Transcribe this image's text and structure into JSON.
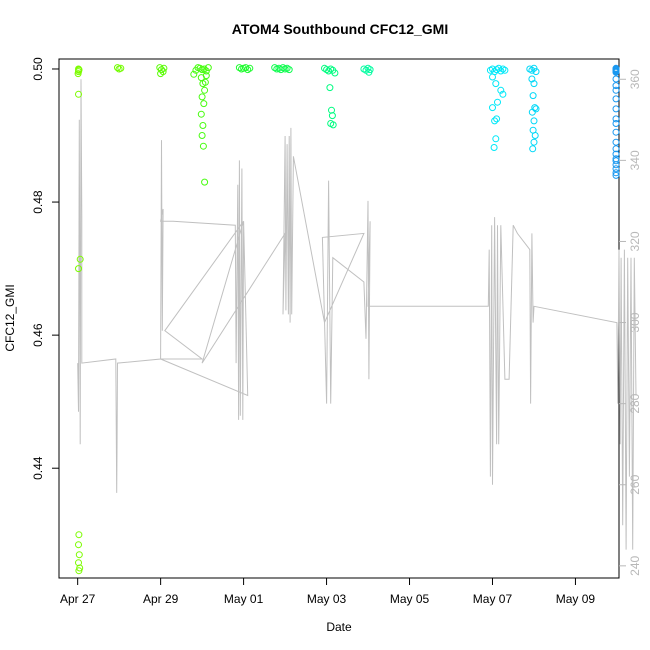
{
  "chart_data": {
    "type": "scatter",
    "title": "ATOM4 Southbound CFC12_GMI",
    "xlabel": "Date",
    "ylabel": "CFC12_GMI",
    "x_ticks": [
      {
        "x": 0,
        "label": "Apr 27"
      },
      {
        "x": 2,
        "label": "Apr 29"
      },
      {
        "x": 4,
        "label": "May 01"
      },
      {
        "x": 6,
        "label": "May 03"
      },
      {
        "x": 8,
        "label": "May 05"
      },
      {
        "x": 10,
        "label": "May 07"
      },
      {
        "x": 12,
        "label": "May 09"
      }
    ],
    "xlim": [
      -0.45,
      13.05
    ],
    "ylim": [
      0.4235,
      0.5015
    ],
    "y_ticks": [
      0.44,
      0.46,
      0.48,
      0.5
    ],
    "y2_label": "",
    "y2lim": [
      237,
      365
    ],
    "y2_ticks": [
      240,
      260,
      280,
      300,
      320,
      340,
      360
    ],
    "grid": false,
    "series": [
      {
        "kind": "scatter",
        "color_note": "points colored by time, green to blue",
        "points": [
          {
            "x": 0.02,
            "y": 0.5,
            "c": "#7CFC00"
          },
          {
            "x": 0.03,
            "y": 0.4999,
            "c": "#7CFC00"
          },
          {
            "x": 0.02,
            "y": 0.4996,
            "c": "#7CFC00"
          },
          {
            "x": 0.01,
            "y": 0.4993,
            "c": "#7CFC00"
          },
          {
            "x": 0.03,
            "y": 0.4998,
            "c": "#7CFC00"
          },
          {
            "x": 0.02,
            "y": 0.4962,
            "c": "#7CFC00"
          },
          {
            "x": 0.06,
            "y": 0.4714,
            "c": "#7CFC00"
          },
          {
            "x": 0.02,
            "y": 0.47,
            "c": "#7CFC00"
          },
          {
            "x": 0.03,
            "y": 0.43,
            "c": "#7CFC00"
          },
          {
            "x": 0.02,
            "y": 0.4285,
            "c": "#7CFC00"
          },
          {
            "x": 0.04,
            "y": 0.427,
            "c": "#7CFC00"
          },
          {
            "x": 0.02,
            "y": 0.4258,
            "c": "#7CFC00"
          },
          {
            "x": 0.05,
            "y": 0.425,
            "c": "#7CFC00"
          },
          {
            "x": 0.03,
            "y": 0.4246,
            "c": "#7CFC00"
          },
          {
            "x": 0.96,
            "y": 0.5002,
            "c": "#72FC00"
          },
          {
            "x": 1.0,
            "y": 0.5,
            "c": "#72FC00"
          },
          {
            "x": 1.04,
            "y": 0.5001,
            "c": "#72FC00"
          },
          {
            "x": 1.98,
            "y": 0.5002,
            "c": "#5CFC08"
          },
          {
            "x": 2.02,
            "y": 0.4999,
            "c": "#5CFC08"
          },
          {
            "x": 2.06,
            "y": 0.4996,
            "c": "#5CFC08"
          },
          {
            "x": 2.0,
            "y": 0.4993,
            "c": "#5CFC08"
          },
          {
            "x": 2.08,
            "y": 0.5001,
            "c": "#5CFC08"
          },
          {
            "x": 2.8,
            "y": 0.4992,
            "c": "#48FC10"
          },
          {
            "x": 2.85,
            "y": 0.4998,
            "c": "#48FC10"
          },
          {
            "x": 2.9,
            "y": 0.5002,
            "c": "#48FC10"
          },
          {
            "x": 2.95,
            "y": 0.5001,
            "c": "#48FC10"
          },
          {
            "x": 3.0,
            "y": 0.4999,
            "c": "#48FC10"
          },
          {
            "x": 3.05,
            "y": 0.5,
            "c": "#48FC10"
          },
          {
            "x": 3.1,
            "y": 0.4997,
            "c": "#48FC10"
          },
          {
            "x": 3.15,
            "y": 0.5002,
            "c": "#48FC10"
          },
          {
            "x": 2.98,
            "y": 0.4987,
            "c": "#48FC10"
          },
          {
            "x": 3.02,
            "y": 0.4978,
            "c": "#48FC10"
          },
          {
            "x": 3.06,
            "y": 0.4968,
            "c": "#48FC10"
          },
          {
            "x": 3.0,
            "y": 0.4958,
            "c": "#48FC10"
          },
          {
            "x": 3.04,
            "y": 0.4948,
            "c": "#48FC10"
          },
          {
            "x": 2.98,
            "y": 0.4932,
            "c": "#48FC10"
          },
          {
            "x": 3.02,
            "y": 0.4915,
            "c": "#48FC10"
          },
          {
            "x": 3.0,
            "y": 0.49,
            "c": "#48FC10"
          },
          {
            "x": 3.03,
            "y": 0.4884,
            "c": "#48FC10"
          },
          {
            "x": 3.06,
            "y": 0.483,
            "c": "#48FC10"
          },
          {
            "x": 3.08,
            "y": 0.498,
            "c": "#48FC10"
          },
          {
            "x": 3.1,
            "y": 0.499,
            "c": "#48FC10"
          },
          {
            "x": 3.9,
            "y": 0.5002,
            "c": "#20FC30"
          },
          {
            "x": 3.95,
            "y": 0.5,
            "c": "#20FC30"
          },
          {
            "x": 4.0,
            "y": 0.5001,
            "c": "#20FC30"
          },
          {
            "x": 4.05,
            "y": 0.5002,
            "c": "#20FC30"
          },
          {
            "x": 4.1,
            "y": 0.4999,
            "c": "#20FC30"
          },
          {
            "x": 4.15,
            "y": 0.5001,
            "c": "#20FC30"
          },
          {
            "x": 4.75,
            "y": 0.5002,
            "c": "#10FC50"
          },
          {
            "x": 4.8,
            "y": 0.5,
            "c": "#10FC50"
          },
          {
            "x": 4.85,
            "y": 0.5001,
            "c": "#10FC50"
          },
          {
            "x": 4.9,
            "y": 0.4999,
            "c": "#10FC50"
          },
          {
            "x": 4.95,
            "y": 0.5002,
            "c": "#10FC50"
          },
          {
            "x": 5.0,
            "y": 0.5,
            "c": "#10FC50"
          },
          {
            "x": 5.05,
            "y": 0.5001,
            "c": "#10FC50"
          },
          {
            "x": 5.1,
            "y": 0.4999,
            "c": "#10FC50"
          },
          {
            "x": 5.95,
            "y": 0.5001,
            "c": "#00FC80"
          },
          {
            "x": 6.0,
            "y": 0.4999,
            "c": "#00FC80"
          },
          {
            "x": 6.05,
            "y": 0.4997,
            "c": "#00FC80"
          },
          {
            "x": 6.1,
            "y": 0.5,
            "c": "#00FC80"
          },
          {
            "x": 6.15,
            "y": 0.4998,
            "c": "#00FC80"
          },
          {
            "x": 6.2,
            "y": 0.4994,
            "c": "#00FC80"
          },
          {
            "x": 6.08,
            "y": 0.4972,
            "c": "#00FC80"
          },
          {
            "x": 6.12,
            "y": 0.4938,
            "c": "#00FC80"
          },
          {
            "x": 6.14,
            "y": 0.493,
            "c": "#00FC80"
          },
          {
            "x": 6.1,
            "y": 0.4918,
            "c": "#00FC80"
          },
          {
            "x": 6.16,
            "y": 0.4916,
            "c": "#00FC80"
          },
          {
            "x": 6.9,
            "y": 0.5,
            "c": "#00FCA0"
          },
          {
            "x": 6.95,
            "y": 0.4998,
            "c": "#00FCA0"
          },
          {
            "x": 7.0,
            "y": 0.5001,
            "c": "#00FCA0"
          },
          {
            "x": 7.05,
            "y": 0.4999,
            "c": "#00FCA0"
          },
          {
            "x": 7.02,
            "y": 0.4995,
            "c": "#00FCA0"
          },
          {
            "x": 9.95,
            "y": 0.4998,
            "c": "#00E8F8"
          },
          {
            "x": 10.0,
            "y": 0.5,
            "c": "#00E8F8"
          },
          {
            "x": 10.05,
            "y": 0.4996,
            "c": "#00E8F8"
          },
          {
            "x": 10.1,
            "y": 0.4999,
            "c": "#00E8F8"
          },
          {
            "x": 10.15,
            "y": 0.5001,
            "c": "#00E8F8"
          },
          {
            "x": 10.2,
            "y": 0.4997,
            "c": "#00E8F8"
          },
          {
            "x": 10.25,
            "y": 0.5,
            "c": "#00E8F8"
          },
          {
            "x": 10.3,
            "y": 0.4998,
            "c": "#00E8F8"
          },
          {
            "x": 10.0,
            "y": 0.4988,
            "c": "#00E8F8"
          },
          {
            "x": 10.08,
            "y": 0.4978,
            "c": "#00E8F8"
          },
          {
            "x": 10.2,
            "y": 0.4968,
            "c": "#00E8F8"
          },
          {
            "x": 10.25,
            "y": 0.4962,
            "c": "#00E8F8"
          },
          {
            "x": 10.12,
            "y": 0.495,
            "c": "#00E8F8"
          },
          {
            "x": 10.0,
            "y": 0.4942,
            "c": "#00E8F8"
          },
          {
            "x": 10.1,
            "y": 0.4925,
            "c": "#00E8F8"
          },
          {
            "x": 10.05,
            "y": 0.4922,
            "c": "#00E8F8"
          },
          {
            "x": 10.08,
            "y": 0.4895,
            "c": "#00E8F8"
          },
          {
            "x": 10.04,
            "y": 0.4882,
            "c": "#00E8F8"
          },
          {
            "x": 10.9,
            "y": 0.5,
            "c": "#00D8F8"
          },
          {
            "x": 10.95,
            "y": 0.4998,
            "c": "#00D8F8"
          },
          {
            "x": 11.0,
            "y": 0.5001,
            "c": "#00D8F8"
          },
          {
            "x": 11.05,
            "y": 0.4996,
            "c": "#00D8F8"
          },
          {
            "x": 10.95,
            "y": 0.4985,
            "c": "#00D8F8"
          },
          {
            "x": 11.0,
            "y": 0.4978,
            "c": "#00D8F8"
          },
          {
            "x": 10.98,
            "y": 0.496,
            "c": "#00D8F8"
          },
          {
            "x": 11.02,
            "y": 0.4942,
            "c": "#00D8F8"
          },
          {
            "x": 11.05,
            "y": 0.494,
            "c": "#00D8F8"
          },
          {
            "x": 10.96,
            "y": 0.4935,
            "c": "#00D8F8"
          },
          {
            "x": 11.0,
            "y": 0.4922,
            "c": "#00D8F8"
          },
          {
            "x": 10.98,
            "y": 0.4908,
            "c": "#00D8F8"
          },
          {
            "x": 11.03,
            "y": 0.49,
            "c": "#00D8F8"
          },
          {
            "x": 11.0,
            "y": 0.489,
            "c": "#00D8F8"
          },
          {
            "x": 10.97,
            "y": 0.488,
            "c": "#00D8F8"
          },
          {
            "x": 13.1,
            "y": 0.5,
            "c": "#1A98F0"
          },
          {
            "x": 13.15,
            "y": 0.4998,
            "c": "#1A98F0"
          },
          {
            "x": 13.2,
            "y": 0.5001,
            "c": "#1A98F0"
          },
          {
            "x": 13.25,
            "y": 0.4996,
            "c": "#1A98F0"
          },
          {
            "x": 13.3,
            "y": 0.4999,
            "c": "#1A98F0"
          },
          {
            "x": 13.35,
            "y": 0.5,
            "c": "#1A98F0"
          },
          {
            "x": 13.4,
            "y": 0.4997,
            "c": "#1A98F0"
          },
          {
            "x": 13.45,
            "y": 0.4995,
            "c": "#1A98F0"
          },
          {
            "x": 13.2,
            "y": 0.4985,
            "c": "#1A98F0"
          },
          {
            "x": 13.25,
            "y": 0.4975,
            "c": "#1A98F0"
          },
          {
            "x": 13.3,
            "y": 0.4968,
            "c": "#1A98F0"
          },
          {
            "x": 13.22,
            "y": 0.4955,
            "c": "#1A98F0"
          },
          {
            "x": 13.4,
            "y": 0.494,
            "c": "#1A98F0"
          },
          {
            "x": 13.35,
            "y": 0.4925,
            "c": "#1A98F0"
          },
          {
            "x": 13.28,
            "y": 0.4918,
            "c": "#1A98F0"
          },
          {
            "x": 13.3,
            "y": 0.4905,
            "c": "#1A98F0"
          },
          {
            "x": 13.25,
            "y": 0.489,
            "c": "#1A98F0"
          },
          {
            "x": 13.32,
            "y": 0.488,
            "c": "#1A98F0"
          },
          {
            "x": 13.2,
            "y": 0.4872,
            "c": "#1A98F0"
          },
          {
            "x": 13.28,
            "y": 0.4865,
            "c": "#1A98F0"
          },
          {
            "x": 13.35,
            "y": 0.4862,
            "c": "#1A98F0"
          },
          {
            "x": 13.3,
            "y": 0.4856,
            "c": "#1A98F0"
          },
          {
            "x": 13.22,
            "y": 0.485,
            "c": "#1A98F0"
          },
          {
            "x": 13.26,
            "y": 0.4844,
            "c": "#1A98F0"
          },
          {
            "x": 13.24,
            "y": 0.484,
            "c": "#1A98F0"
          }
        ]
      },
      {
        "kind": "line",
        "axis": "right",
        "color": "#c0c0c0",
        "points": [
          [
            0.0,
            290
          ],
          [
            0.02,
            278
          ],
          [
            0.04,
            350
          ],
          [
            0.06,
            270
          ],
          [
            0.08,
            360
          ],
          [
            0.1,
            326
          ],
          [
            0.1,
            290
          ],
          [
            0.92,
            291
          ],
          [
            0.94,
            258
          ],
          [
            0.95,
            272
          ],
          [
            0.96,
            290
          ],
          [
            2.0,
            291
          ],
          [
            2.02,
            345
          ],
          [
            2.04,
            298
          ],
          [
            2.06,
            328
          ],
          [
            2.0,
            325
          ],
          [
            2.3,
            325
          ],
          [
            3.8,
            324
          ],
          [
            3.82,
            290
          ],
          [
            3.86,
            334
          ],
          [
            3.88,
            276
          ],
          [
            3.9,
            340
          ],
          [
            3.92,
            277
          ],
          [
            3.96,
            338
          ],
          [
            3.98,
            276
          ],
          [
            4.0,
            325
          ],
          [
            4.1,
            282
          ],
          [
            2.0,
            291
          ],
          [
            3.0,
            291
          ],
          [
            2.1,
            298
          ],
          [
            4.0,
            325
          ],
          [
            3.0,
            290
          ],
          [
            5.0,
            322
          ],
          [
            4.95,
            302
          ],
          [
            5.0,
            346
          ],
          [
            5.02,
            303
          ],
          [
            5.05,
            344
          ],
          [
            5.08,
            302
          ],
          [
            5.1,
            346
          ],
          [
            5.12,
            300
          ],
          [
            5.14,
            348
          ],
          [
            5.16,
            302
          ],
          [
            5.2,
            341
          ],
          [
            5.95,
            300
          ],
          [
            6.9,
            322
          ],
          [
            5.9,
            321
          ],
          [
            6.0,
            280
          ],
          [
            6.05,
            335
          ],
          [
            6.1,
            280
          ],
          [
            6.15,
            316
          ],
          [
            6.9,
            310
          ],
          [
            6.95,
            296
          ],
          [
            7.0,
            330
          ],
          [
            7.02,
            286
          ],
          [
            7.05,
            325
          ],
          [
            7.0,
            304
          ],
          [
            9.9,
            304
          ],
          [
            9.92,
            318
          ],
          [
            9.95,
            262
          ],
          [
            9.98,
            324
          ],
          [
            10.0,
            260
          ],
          [
            10.05,
            326
          ],
          [
            10.1,
            270
          ],
          [
            10.12,
            324
          ],
          [
            10.15,
            270
          ],
          [
            10.2,
            324
          ],
          [
            10.3,
            286
          ],
          [
            10.4,
            286
          ],
          [
            10.5,
            324
          ],
          [
            10.6,
            322
          ],
          [
            10.9,
            318
          ],
          [
            10.92,
            280
          ],
          [
            10.95,
            322
          ],
          [
            10.98,
            300
          ],
          [
            11.0,
            304
          ],
          [
            13.0,
            300
          ],
          [
            13.02,
            280
          ],
          [
            13.05,
            318
          ],
          [
            13.08,
            270
          ],
          [
            13.1,
            316
          ],
          [
            13.14,
            250
          ],
          [
            13.18,
            318
          ],
          [
            13.22,
            244
          ],
          [
            13.26,
            316
          ],
          [
            13.3,
            262
          ],
          [
            13.34,
            316
          ],
          [
            13.38,
            244
          ],
          [
            13.42,
            316
          ],
          [
            13.46,
            282
          ]
        ]
      }
    ]
  }
}
